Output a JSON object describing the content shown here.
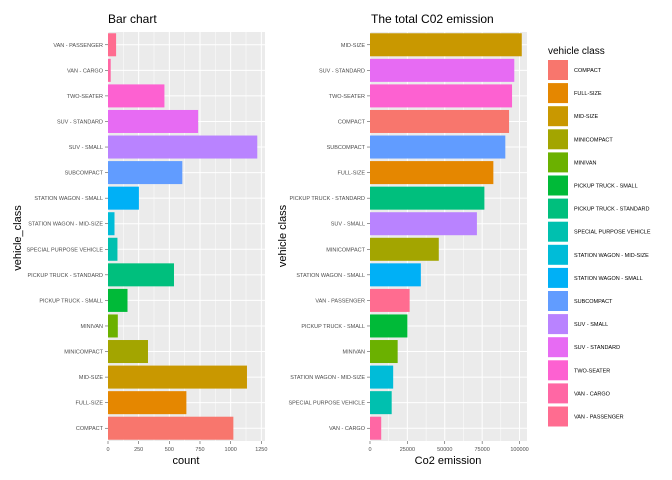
{
  "chart_data": [
    {
      "type": "bar",
      "orientation": "horizontal",
      "title": "Bar chart",
      "xlabel": "count",
      "ylabel": "vehicle_class",
      "xlim": [
        0,
        1280
      ],
      "xticks": [
        "0",
        "250",
        "500",
        "750",
        "1000",
        "1250"
      ],
      "grid": true,
      "categories": [
        "COMPACT",
        "FULL-SIZE",
        "MID-SIZE",
        "MINICOMPACT",
        "MINIVAN",
        "PICKUP TRUCK - SMALL",
        "PICKUP TRUCK - STANDARD",
        "SPECIAL PURPOSE VEHICLE",
        "STATION WAGON - MID-SIZE",
        "STATION WAGON - SMALL",
        "SUBCOMPACT",
        "SUV - SMALL",
        "SUV - STANDARD",
        "TWO-SEATER",
        "VAN - CARGO",
        "VAN - PASSENGER"
      ],
      "values": [
        1022,
        639,
        1133,
        326,
        80,
        159,
        538,
        77,
        53,
        252,
        606,
        1217,
        735,
        460,
        22,
        66
      ]
    },
    {
      "type": "bar",
      "orientation": "horizontal",
      "title": "The total C02 emission",
      "xlabel": "Co2 emission",
      "ylabel": "vehicle class",
      "xlim": [
        0,
        105000
      ],
      "xticks": [
        "0",
        "25000",
        "50000",
        "75000",
        "100000"
      ],
      "grid": true,
      "categories": [
        "VAN - CARGO",
        "SPECIAL PURPOSE VEHICLE",
        "STATION WAGON - MID-SIZE",
        "MINIVAN",
        "PICKUP TRUCK - SMALL",
        "VAN - PASSENGER",
        "STATION WAGON - SMALL",
        "MINICOMPACT",
        "SUV - SMALL",
        "PICKUP TRUCK - STANDARD",
        "FULL-SIZE",
        "SUBCOMPACT",
        "COMPACT",
        "TWO-SEATER",
        "SUV - STANDARD",
        "MID-SIZE"
      ],
      "values": [
        7500,
        14500,
        15500,
        18500,
        25000,
        26500,
        34000,
        46000,
        71500,
        76500,
        82500,
        90500,
        93000,
        95000,
        96500,
        101500
      ]
    }
  ],
  "legend": {
    "title": "vehicle class",
    "placement": "right",
    "items": [
      {
        "label": "COMPACT",
        "color": "#F8766D"
      },
      {
        "label": "FULL-SIZE",
        "color": "#E58700"
      },
      {
        "label": "MID-SIZE",
        "color": "#C99800"
      },
      {
        "label": "MINICOMPACT",
        "color": "#A3A500"
      },
      {
        "label": "MINIVAN",
        "color": "#6BB100"
      },
      {
        "label": "PICKUP TRUCK - SMALL",
        "color": "#00BA38"
      },
      {
        "label": "PICKUP TRUCK - STANDARD",
        "color": "#00BF7D"
      },
      {
        "label": "SPECIAL PURPOSE VEHICLE",
        "color": "#00C0AF"
      },
      {
        "label": "STATION WAGON - MID-SIZE",
        "color": "#00BCD8"
      },
      {
        "label": "STATION WAGON - SMALL",
        "color": "#00B0F6"
      },
      {
        "label": "SUBCOMPACT",
        "color": "#619CFF"
      },
      {
        "label": "SUV - SMALL",
        "color": "#B983FF"
      },
      {
        "label": "SUV - STANDARD",
        "color": "#E76BF3"
      },
      {
        "label": "TWO-SEATER",
        "color": "#FD61D1"
      },
      {
        "label": "VAN - CARGO",
        "color": "#FF67A4"
      },
      {
        "label": "VAN - PASSENGER",
        "color": "#FF6C90"
      }
    ]
  },
  "colors": {
    "panel_bg": "#EBEBEB",
    "grid": "#FFFFFF"
  }
}
